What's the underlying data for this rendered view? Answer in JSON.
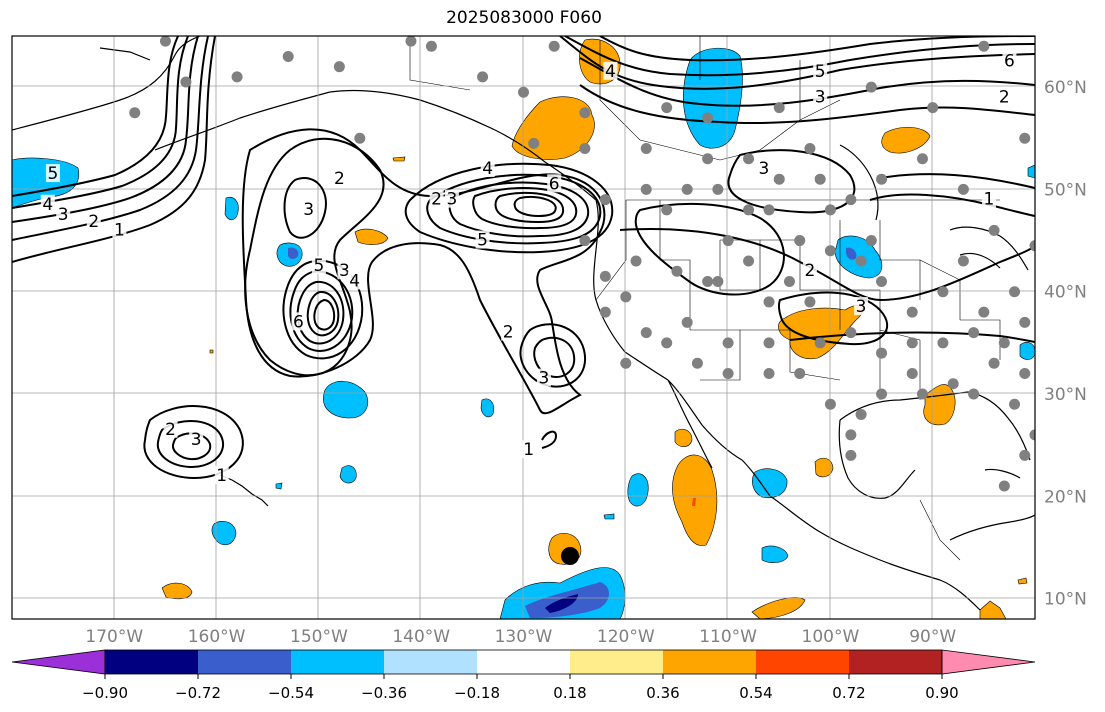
{
  "title": "2025083000 F060",
  "map": {
    "lon_range": [
      -180,
      -80
    ],
    "lat_range": [
      8,
      65
    ],
    "lon_labels": [
      "170°W",
      "160°W",
      "150°W",
      "140°W",
      "130°W",
      "120°W",
      "110°W",
      "100°W",
      "90°W"
    ],
    "lon_ticks": [
      -170,
      -160,
      -150,
      -140,
      -130,
      -120,
      -110,
      -100,
      -90
    ],
    "lat_labels": [
      "10°N",
      "20°N",
      "30°N",
      "40°N",
      "50°N",
      "60°N"
    ],
    "lat_ticks": [
      10,
      20,
      30,
      40,
      50,
      60
    ],
    "contour_labels": [
      {
        "text": "5",
        "lon": -176,
        "lat": 51.5
      },
      {
        "text": "4",
        "lon": -176.5,
        "lat": 48.5
      },
      {
        "text": "3",
        "lon": -175,
        "lat": 47.5
      },
      {
        "text": "2",
        "lon": -172,
        "lat": 46.8
      },
      {
        "text": "1",
        "lon": -169.5,
        "lat": 46
      },
      {
        "text": "2",
        "lon": -148,
        "lat": 51
      },
      {
        "text": "3",
        "lon": -151,
        "lat": 48
      },
      {
        "text": "5",
        "lon": -150,
        "lat": 42.5
      },
      {
        "text": "3",
        "lon": -147.5,
        "lat": 42
      },
      {
        "text": "4",
        "lon": -146.5,
        "lat": 41
      },
      {
        "text": "6",
        "lon": -152,
        "lat": 37
      },
      {
        "text": "2",
        "lon": -138.5,
        "lat": 49
      },
      {
        "text": "3",
        "lon": -137,
        "lat": 49
      },
      {
        "text": "4",
        "lon": -133.5,
        "lat": 52
      },
      {
        "text": "5",
        "lon": -134,
        "lat": 45
      },
      {
        "text": "6",
        "lon": -127,
        "lat": 50.5
      },
      {
        "text": "2",
        "lon": -131.5,
        "lat": 36
      },
      {
        "text": "3",
        "lon": -128,
        "lat": 31.5
      },
      {
        "text": "1",
        "lon": -129.5,
        "lat": 24.5
      },
      {
        "text": "2",
        "lon": -164.5,
        "lat": 26.5
      },
      {
        "text": "3",
        "lon": -162,
        "lat": 25.5
      },
      {
        "text": "1",
        "lon": -159.5,
        "lat": 22
      },
      {
        "text": "4",
        "lon": -121.5,
        "lat": 61.5
      },
      {
        "text": "5",
        "lon": -101,
        "lat": 61.5
      },
      {
        "text": "3",
        "lon": -101,
        "lat": 59
      },
      {
        "text": "6",
        "lon": -82.5,
        "lat": 62.5
      },
      {
        "text": "2",
        "lon": -83,
        "lat": 59
      },
      {
        "text": "3",
        "lon": -106.5,
        "lat": 52
      },
      {
        "text": "1",
        "lon": -84.5,
        "lat": 49
      },
      {
        "text": "2",
        "lon": -102,
        "lat": 42
      },
      {
        "text": "3",
        "lon": -97,
        "lat": 38.5
      }
    ],
    "stations": [
      [
        -165,
        64.5
      ],
      [
        -168,
        57.5
      ],
      [
        -163,
        60.5
      ],
      [
        -158,
        61
      ],
      [
        -153,
        63
      ],
      [
        -148,
        62
      ],
      [
        -146,
        55
      ],
      [
        -141,
        64.5
      ],
      [
        -139,
        64
      ],
      [
        -134,
        61
      ],
      [
        -130,
        59.5
      ],
      [
        -127,
        64
      ],
      [
        -124,
        57.5
      ],
      [
        -129,
        54.5
      ],
      [
        -124,
        54
      ],
      [
        -122,
        49
      ],
      [
        -124,
        45
      ],
      [
        -122,
        41.5
      ],
      [
        -120,
        39.5
      ],
      [
        -118,
        36
      ],
      [
        -115,
        42
      ],
      [
        -116,
        48
      ],
      [
        -118,
        50
      ],
      [
        -112,
        57
      ],
      [
        -112,
        53
      ],
      [
        -111,
        50
      ],
      [
        -108,
        48
      ],
      [
        -105,
        51
      ],
      [
        -102,
        54
      ],
      [
        -101,
        51
      ],
      [
        -98,
        49
      ],
      [
        -95,
        51
      ],
      [
        -91,
        53
      ],
      [
        -87,
        50
      ],
      [
        -84,
        46
      ],
      [
        -80,
        44.5
      ],
      [
        -82,
        40
      ],
      [
        -85,
        38
      ],
      [
        -89,
        40
      ],
      [
        -92,
        38
      ],
      [
        -95,
        41
      ],
      [
        -97,
        43
      ],
      [
        -100,
        44
      ],
      [
        -104,
        41
      ],
      [
        -108,
        43
      ],
      [
        -112,
        41
      ],
      [
        -110,
        45
      ],
      [
        -106,
        39
      ],
      [
        -102,
        39
      ],
      [
        -98,
        36
      ],
      [
        -95,
        34
      ],
      [
        -92,
        35
      ],
      [
        -89,
        35
      ],
      [
        -86,
        36
      ],
      [
        -83,
        35
      ],
      [
        -81,
        32
      ],
      [
        -84,
        33
      ],
      [
        -88,
        31
      ],
      [
        -91,
        30
      ],
      [
        -95,
        30
      ],
      [
        -97,
        28
      ],
      [
        -98,
        24
      ],
      [
        -100,
        29
      ],
      [
        -103,
        32
      ],
      [
        -106,
        32
      ],
      [
        -110,
        32
      ],
      [
        -113,
        33
      ],
      [
        -116,
        35
      ],
      [
        -120,
        33
      ],
      [
        -122,
        38
      ],
      [
        -114,
        37
      ],
      [
        -110,
        35
      ],
      [
        -106,
        35
      ],
      [
        -101,
        35
      ],
      [
        -92,
        32
      ],
      [
        -86,
        30
      ],
      [
        -82,
        29
      ],
      [
        -80,
        26
      ],
      [
        -81,
        24
      ],
      [
        -83,
        21
      ],
      [
        -105,
        58
      ],
      [
        -96,
        60
      ],
      [
        -90,
        58
      ],
      [
        -85,
        64
      ],
      [
        -106,
        48
      ],
      [
        -103,
        45
      ],
      [
        -108,
        53
      ],
      [
        -116,
        58
      ],
      [
        -118,
        54
      ],
      [
        -81,
        55
      ],
      [
        -81,
        37
      ],
      [
        -87,
        43
      ],
      [
        -96,
        45
      ],
      [
        -100,
        48
      ],
      [
        -114,
        50
      ],
      [
        -111,
        41
      ],
      [
        -119,
        43
      ],
      [
        -98,
        26
      ]
    ]
  },
  "colorbar": {
    "labels": [
      "−0.90",
      "−0.72",
      "−0.54",
      "−0.36",
      "−0.18",
      "0.18",
      "0.36",
      "0.54",
      "0.72",
      "0.90"
    ],
    "colors": [
      "#9b30d9",
      "#000080",
      "#3a5fcd",
      "#00bfff",
      "#b0e2ff",
      "#ffffff",
      "#ffec8b",
      "#ffa500",
      "#ff4500",
      "#b22222",
      "#ff8cb0"
    ]
  }
}
